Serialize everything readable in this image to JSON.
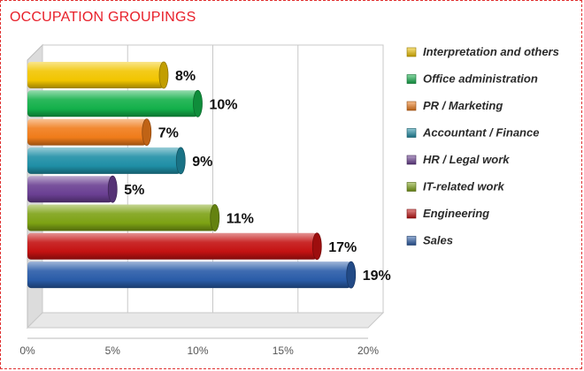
{
  "chart_data": {
    "type": "bar",
    "orientation": "horizontal",
    "title": "OCCUPATION GROUPINGS",
    "categories": [
      "Interpretation and others",
      "Office administration",
      "PR / Marketing",
      "Accountant / Finance",
      "HR / Legal work",
      "IT-related work",
      "Engineering",
      "Sales"
    ],
    "values": [
      8,
      10,
      7,
      9,
      5,
      11,
      17,
      19
    ],
    "data_labels": [
      "8%",
      "10%",
      "7%",
      "9%",
      "5%",
      "11%",
      "17%",
      "19%"
    ],
    "colors": [
      "#f2c500",
      "#13b04a",
      "#f07c1a",
      "#1f8fa6",
      "#6a3f92",
      "#7da214",
      "#c41212",
      "#2a5ca8"
    ],
    "xlim": [
      0,
      20
    ],
    "x_ticks": [
      "0%",
      "5%",
      "10%",
      "15%",
      "20%"
    ],
    "grid": true,
    "legend_position": "right"
  }
}
